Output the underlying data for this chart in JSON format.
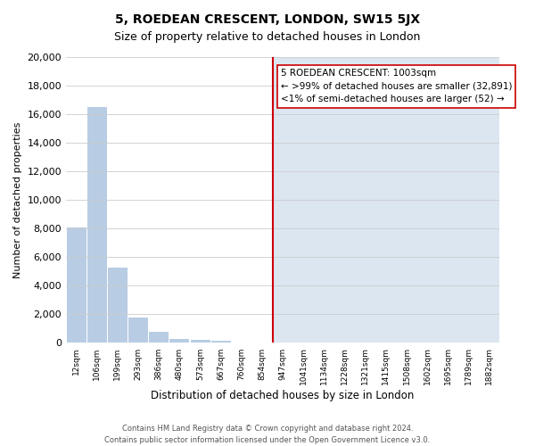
{
  "title": "5, ROEDEAN CRESCENT, LONDON, SW15 5JX",
  "subtitle": "Size of property relative to detached houses in London",
  "xlabel": "Distribution of detached houses by size in London",
  "ylabel": "Number of detached properties",
  "bar_labels": [
    "12sqm",
    "106sqm",
    "199sqm",
    "293sqm",
    "386sqm",
    "480sqm",
    "573sqm",
    "667sqm",
    "760sqm",
    "854sqm",
    "947sqm",
    "1041sqm",
    "1134sqm",
    "1228sqm",
    "1321sqm",
    "1415sqm",
    "1508sqm",
    "1602sqm",
    "1695sqm",
    "1789sqm",
    "1882sqm"
  ],
  "bar_heights": [
    8100,
    16500,
    5300,
    1750,
    800,
    250,
    200,
    150,
    0,
    0,
    0,
    0,
    0,
    0,
    0,
    0,
    0,
    0,
    0,
    0,
    0
  ],
  "bar_color_left": "#b8cce4",
  "bar_color_right": "#dce6f1",
  "marker_color": "#cc0000",
  "annotation_text": "5 ROEDEAN CRESCENT: 1003sqm\n← >99% of detached houses are smaller (32,891)\n<1% of semi-detached houses are larger (52) →",
  "ylim": [
    0,
    20000
  ],
  "yticks": [
    0,
    2000,
    4000,
    6000,
    8000,
    10000,
    12000,
    14000,
    16000,
    18000,
    20000
  ],
  "grid_color": "#cccccc",
  "footer_text": "Contains HM Land Registry data © Crown copyright and database right 2024.\nContains public sector information licensed under the Open Government Licence v3.0.",
  "n_bars": 21,
  "marker_bar_index": 10,
  "left_bg_color": "#ffffff",
  "right_bg_color": "#dce6f1"
}
